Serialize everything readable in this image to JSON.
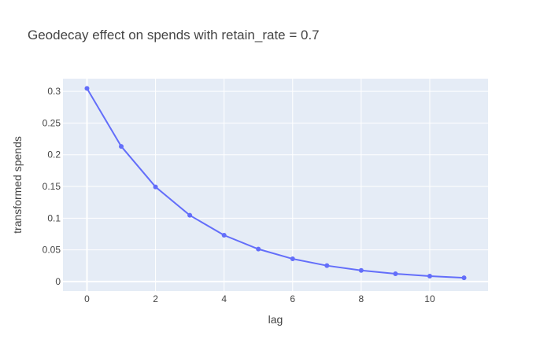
{
  "chart_data": {
    "type": "line",
    "title": "Geodecay effect on spends with retain_rate = 0.7",
    "xlabel": "lag",
    "ylabel": "transformed spends",
    "x": [
      0,
      1,
      2,
      3,
      4,
      5,
      6,
      7,
      8,
      9,
      10,
      11
    ],
    "series": [
      {
        "values": [
          0.3046,
          0.2132,
          0.1493,
          0.1045,
          0.0731,
          0.0512,
          0.0358,
          0.0251,
          0.0176,
          0.0123,
          0.0086,
          0.006
        ],
        "color": "#636efa"
      }
    ],
    "xlim": [
      -0.7,
      11.7
    ],
    "ylim": [
      -0.015,
      0.32
    ],
    "xticks": [
      0,
      2,
      4,
      6,
      8,
      10
    ],
    "xtick_labels": [
      "0",
      "2",
      "4",
      "6",
      "8",
      "10"
    ],
    "yticks": [
      0,
      0.05,
      0.1,
      0.15,
      0.2,
      0.25,
      0.3
    ],
    "ytick_labels": [
      "0",
      "0.05",
      "0.1",
      "0.15",
      "0.2",
      "0.25",
      "0.3"
    ],
    "grid": true,
    "legend": "none",
    "colors": {
      "plot_bg": "#e5ecf6",
      "grid": "#ffffff",
      "text": "#444444"
    }
  }
}
